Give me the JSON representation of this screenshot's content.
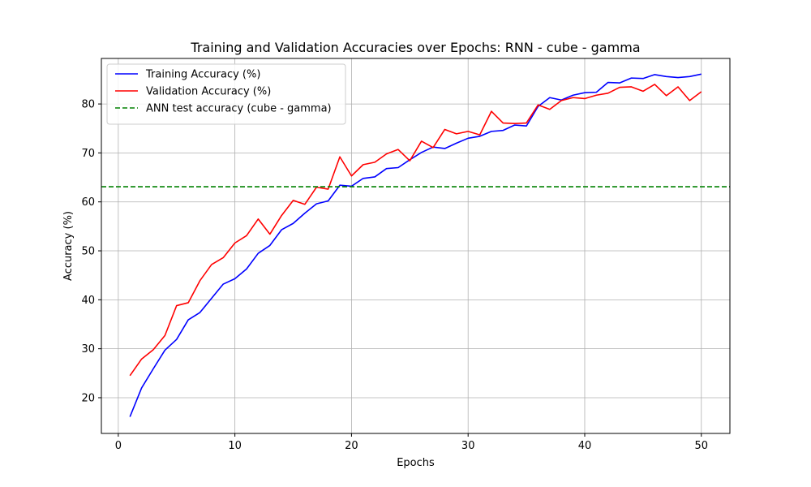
{
  "chart_data": {
    "type": "line",
    "title": "Training and Validation Accuracies over Epochs: RNN - cube - gamma",
    "xlabel": "Epochs",
    "ylabel": "Accuracy (%)",
    "xlim": [
      -1.45,
      52.45
    ],
    "ylim": [
      12.7,
      89.3
    ],
    "xticks": [
      0,
      10,
      20,
      30,
      40,
      50
    ],
    "yticks": [
      20,
      30,
      40,
      50,
      60,
      70,
      80
    ],
    "grid": true,
    "legend_position": "upper-left",
    "x": [
      1,
      2,
      3,
      4,
      5,
      6,
      7,
      8,
      9,
      10,
      11,
      12,
      13,
      14,
      15,
      16,
      17,
      18,
      19,
      20,
      21,
      22,
      23,
      24,
      25,
      26,
      27,
      28,
      29,
      30,
      31,
      32,
      33,
      34,
      35,
      36,
      37,
      38,
      39,
      40,
      41,
      42,
      43,
      44,
      45,
      46,
      47,
      48,
      49,
      50
    ],
    "series": [
      {
        "name": "Training Accuracy (%)",
        "color": "#0000ff",
        "style": "solid",
        "values": [
          16.1,
          22.0,
          25.9,
          29.7,
          31.9,
          35.9,
          37.4,
          40.3,
          43.2,
          44.3,
          46.3,
          49.5,
          51.1,
          54.3,
          55.6,
          57.7,
          59.6,
          60.2,
          63.4,
          63.2,
          64.8,
          65.1,
          66.8,
          67.0,
          68.6,
          70.1,
          71.2,
          70.9,
          72.0,
          73.0,
          73.4,
          74.4,
          74.6,
          75.7,
          75.5,
          79.5,
          81.3,
          80.8,
          81.8,
          82.3,
          82.4,
          84.4,
          84.3,
          85.3,
          85.2,
          86.0,
          85.6,
          85.4,
          85.6,
          86.1
        ]
      },
      {
        "name": "Validation Accuracy (%)",
        "color": "#ff0000",
        "style": "solid",
        "values": [
          24.5,
          27.9,
          29.8,
          32.7,
          38.8,
          39.4,
          43.9,
          47.2,
          48.6,
          51.6,
          53.1,
          56.5,
          53.4,
          57.2,
          60.3,
          59.5,
          63.0,
          62.6,
          69.2,
          65.3,
          67.6,
          68.1,
          69.8,
          70.7,
          68.4,
          72.4,
          71.1,
          74.8,
          73.9,
          74.4,
          73.7,
          78.5,
          76.1,
          76.0,
          76.1,
          79.8,
          78.9,
          80.7,
          81.3,
          81.1,
          81.8,
          82.2,
          83.4,
          83.5,
          82.6,
          84.0,
          81.7,
          83.5,
          80.7,
          82.5
        ]
      }
    ],
    "reference_lines": [
      {
        "name": "ANN test accuracy (cube - gamma)",
        "color": "#008000",
        "style": "dashed",
        "y": 63.1
      }
    ]
  }
}
